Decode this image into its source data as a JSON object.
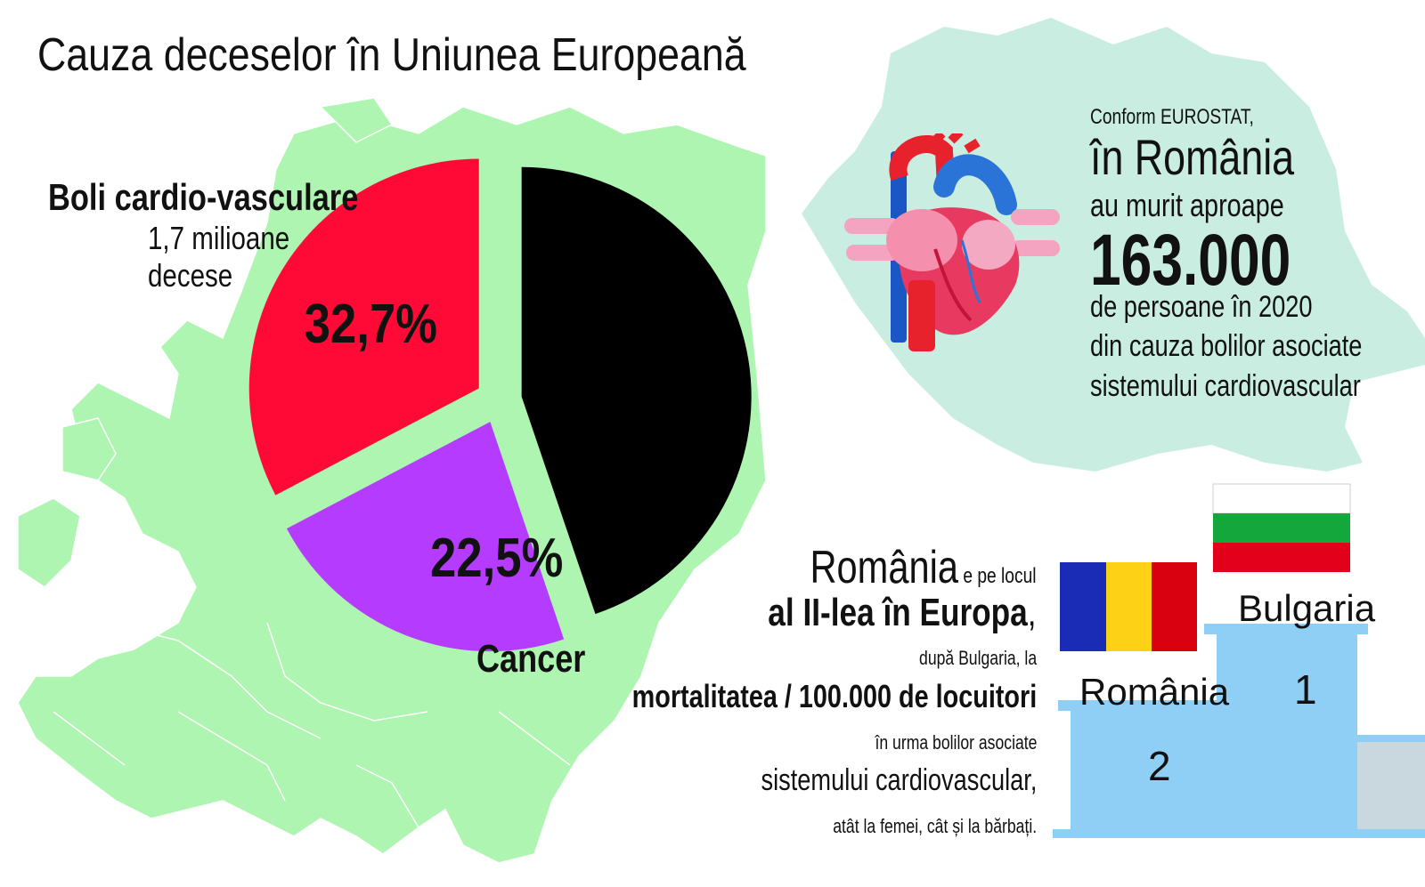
{
  "title": "Cauza deceselor în Uniunea Europeană",
  "colors": {
    "map_green": "#adf5b0",
    "romania_map": "#c9ede0",
    "cardio": "#ff0a36",
    "cancer": "#b53cff",
    "other": "#000000",
    "podium": "#8fcff5"
  },
  "chart_data": {
    "type": "pie",
    "title": "Cauza deceselor în Uniunea Europeană",
    "slices": [
      {
        "name": "Boli cardio-vasculare",
        "value": 32.7,
        "value_label": "32,7%",
        "color": "#ff0a36",
        "exploded": true
      },
      {
        "name": "",
        "value": 44.8,
        "value_label": "",
        "color": "#000000",
        "exploded": true
      },
      {
        "name": "Cancer",
        "value": 22.5,
        "value_label": "22,5%",
        "color": "#b53cff",
        "exploded": true
      }
    ]
  },
  "annotations": {
    "cardio_title": "Boli cardio-vasculare",
    "cardio_sub_line1": "1,7 milioane",
    "cardio_sub_line2": "decese",
    "cancer_label": "Cancer"
  },
  "romania_info": {
    "line1": "Conform EUROSTAT,",
    "line2": "în România",
    "line3": "au murit aproape",
    "line4": "163.000",
    "line5": "de persoane în 2020",
    "line6": "din cauza bolilor asociate",
    "line7": "sistemului cardiovascular"
  },
  "ranking": {
    "line1_big": "România",
    "line1_small": " e pe locul",
    "line2": "al II-lea în Europa",
    "line2_suffix": ",",
    "line3": "după Bulgaria, la",
    "line4": "mortalitatea / 100.000 de locuitori",
    "line5": "în urma bolilor asociate",
    "line6": "sistemului cardiovascular,",
    "line7": "atât la femei, cât și la bărbați."
  },
  "podium": {
    "first": {
      "country": "Bulgaria",
      "place": "1",
      "flag_colors": [
        "#ffffff",
        "#14a83c",
        "#e2001a"
      ]
    },
    "second": {
      "country": "România",
      "place": "2",
      "flag_colors": [
        "#1a2bb5",
        "#fcd116",
        "#d9000f"
      ]
    }
  },
  "icons": {
    "heart": "anatomical-heart-icon",
    "europe_map": "europe-map-icon",
    "romania_map": "romania-map-icon"
  }
}
